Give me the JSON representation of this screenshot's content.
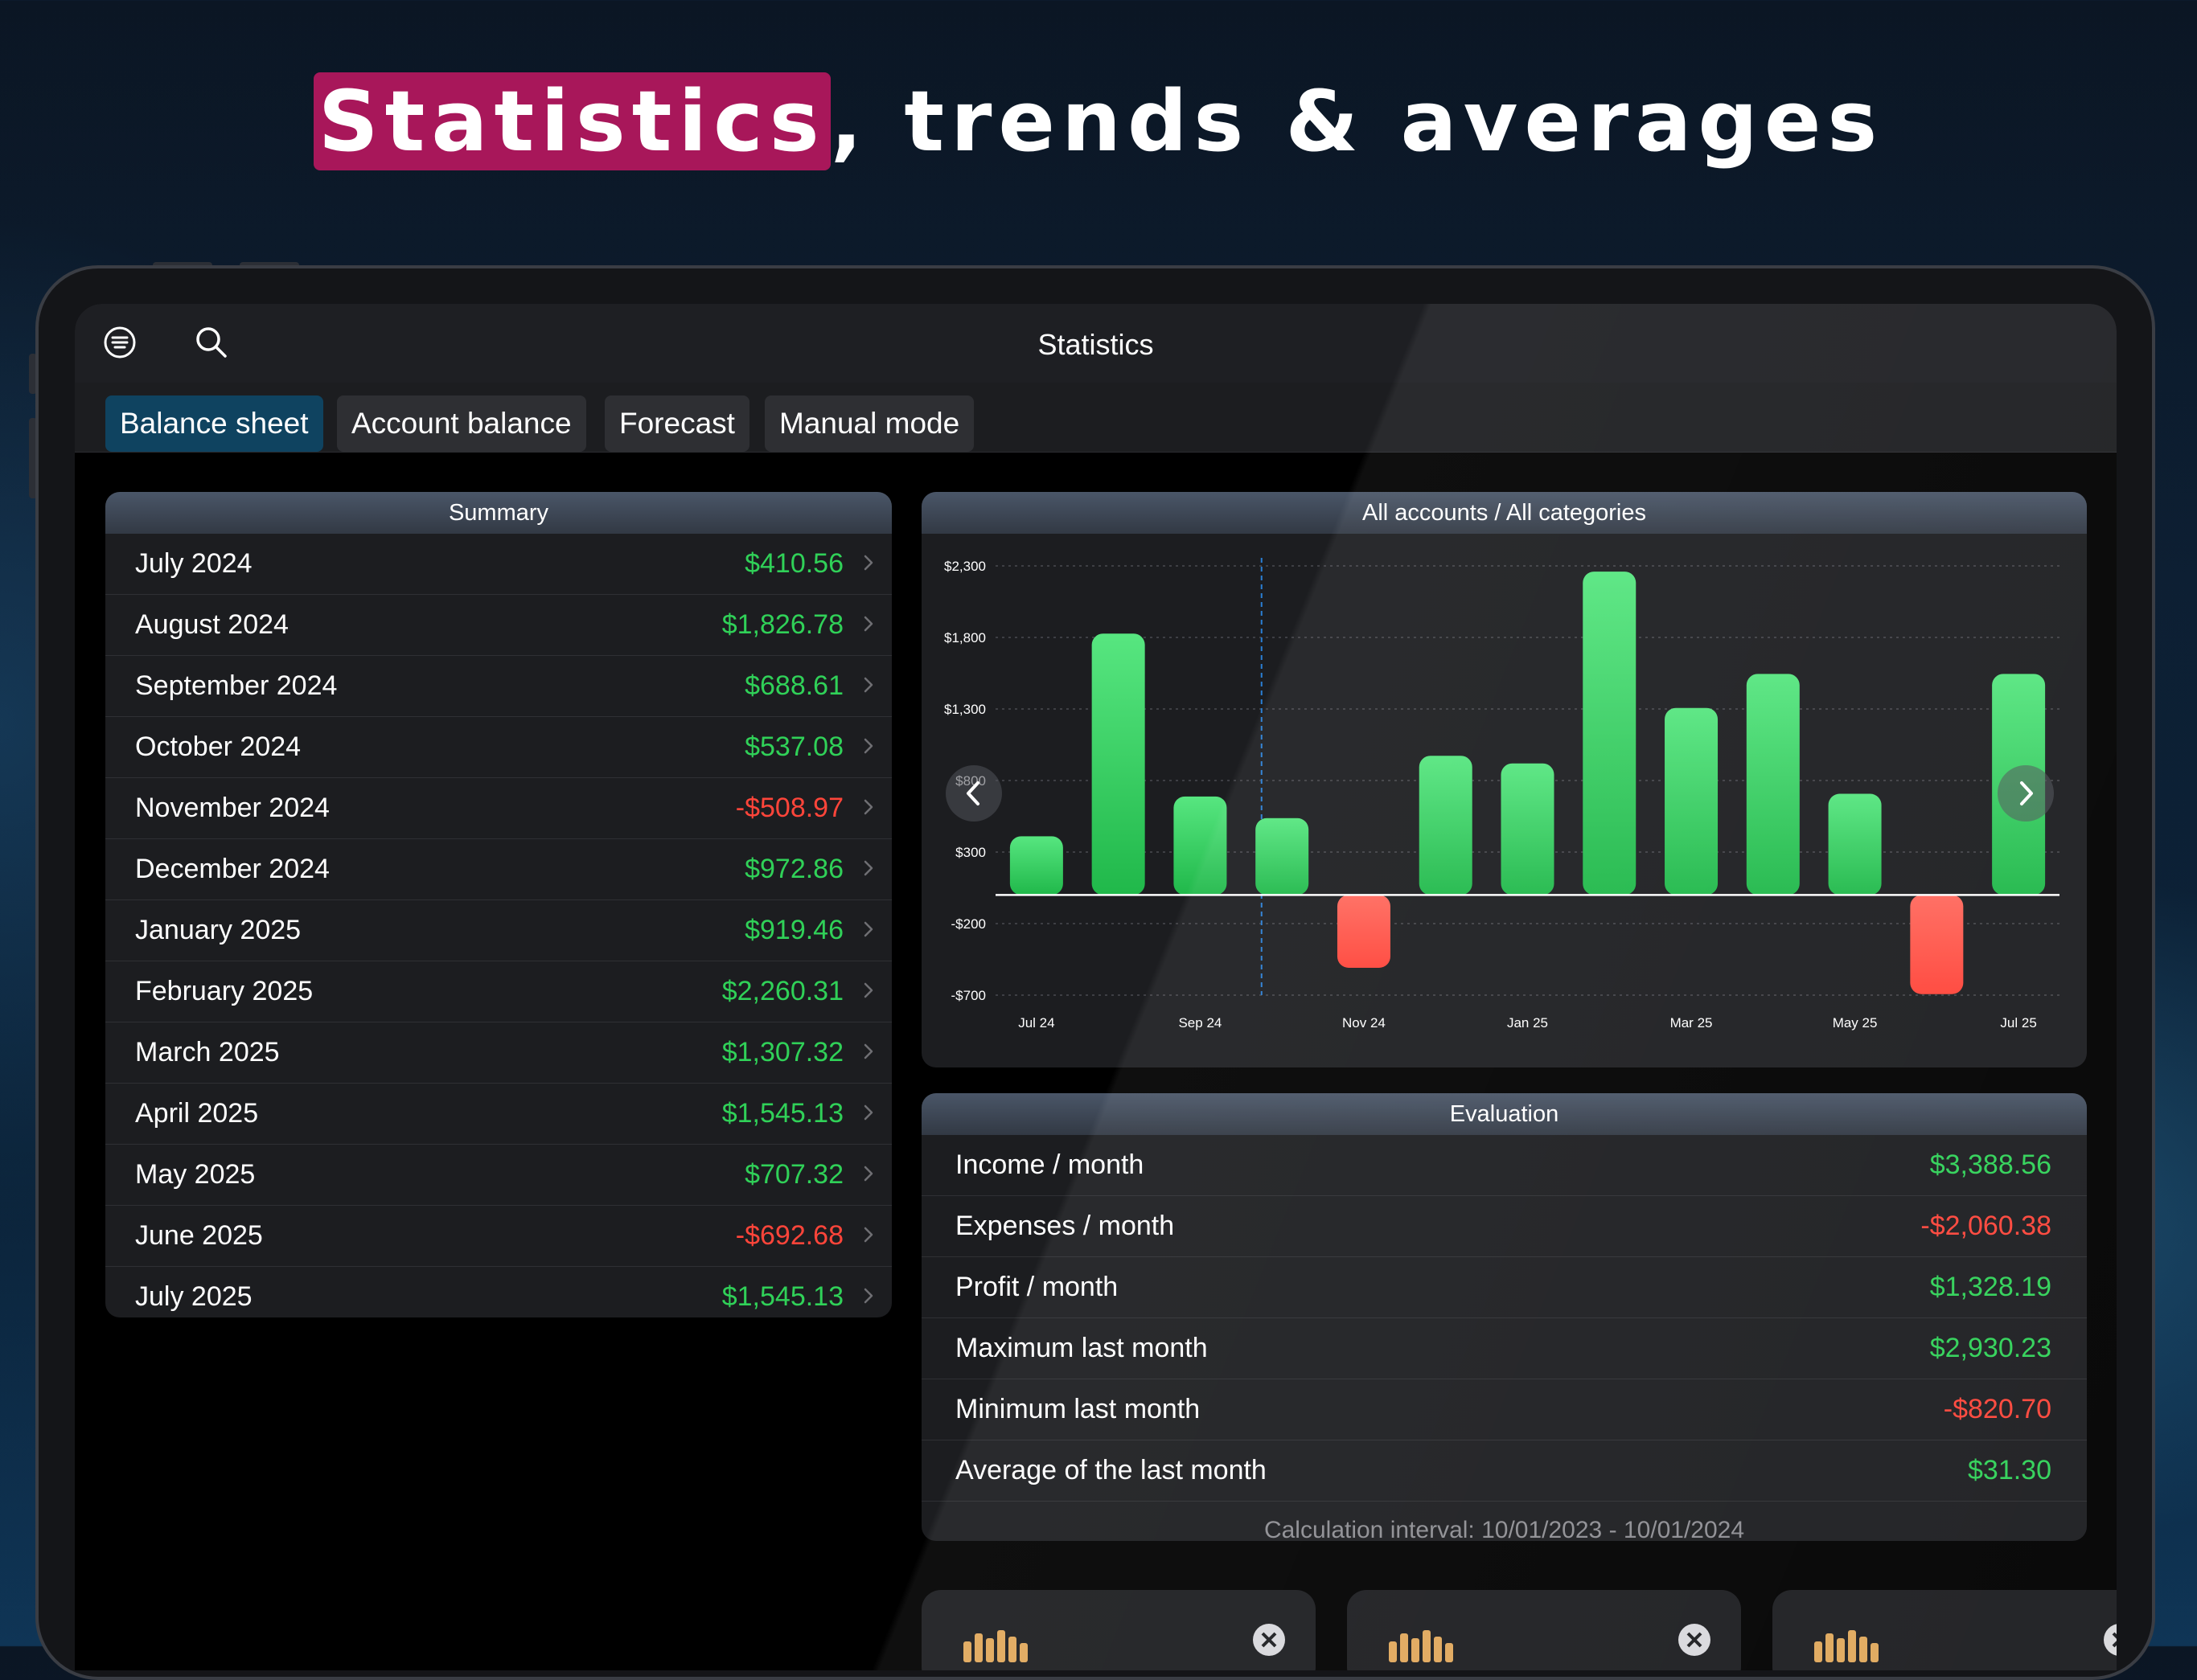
{
  "headline": {
    "highlight": "Statistics",
    "rest": ", trends & averages"
  },
  "colors": {
    "accent_highlight": "#a8175a",
    "positive": "#30d158",
    "negative": "#ff453a",
    "active_tab": "#0f4360"
  },
  "navbar": {
    "title": "Statistics",
    "icons": [
      "menu-icon",
      "search-icon"
    ]
  },
  "tabs": [
    {
      "label": "Balance sheet",
      "active": true
    },
    {
      "label": "Account balance",
      "active": false
    },
    {
      "label": "Forecast",
      "active": false
    },
    {
      "label": "Manual mode",
      "active": false
    }
  ],
  "summary": {
    "title": "Summary",
    "rows": [
      {
        "month": "July 2024",
        "value": "$410.56",
        "sign": "pos"
      },
      {
        "month": "August 2024",
        "value": "$1,826.78",
        "sign": "pos"
      },
      {
        "month": "September 2024",
        "value": "$688.61",
        "sign": "pos"
      },
      {
        "month": "October 2024",
        "value": "$537.08",
        "sign": "pos"
      },
      {
        "month": "November 2024",
        "value": "-$508.97",
        "sign": "neg"
      },
      {
        "month": "December 2024",
        "value": "$972.86",
        "sign": "pos"
      },
      {
        "month": "January 2025",
        "value": "$919.46",
        "sign": "pos"
      },
      {
        "month": "February 2025",
        "value": "$2,260.31",
        "sign": "pos"
      },
      {
        "month": "March 2025",
        "value": "$1,307.32",
        "sign": "pos"
      },
      {
        "month": "April 2025",
        "value": "$1,545.13",
        "sign": "pos"
      },
      {
        "month": "May 2025",
        "value": "$707.32",
        "sign": "pos"
      },
      {
        "month": "June 2025",
        "value": "-$692.68",
        "sign": "neg"
      },
      {
        "month": "July 2025",
        "value": "$1,545.13",
        "sign": "pos"
      }
    ]
  },
  "chart_panel": {
    "title": "All accounts / All categories"
  },
  "chart_data": {
    "type": "bar",
    "title": "All accounts / All categories",
    "categories": [
      "Jul 24",
      "Aug 24",
      "Sep 24",
      "Oct 24",
      "Nov 24",
      "Dec 24",
      "Jan 25",
      "Feb 25",
      "Mar 25",
      "Apr 25",
      "May 25",
      "Jun 25",
      "Jul 25"
    ],
    "values": [
      410.56,
      1826.78,
      688.61,
      537.08,
      -508.97,
      972.86,
      919.46,
      2260.31,
      1307.32,
      1545.13,
      707.32,
      -692.68,
      1545.13
    ],
    "x_tick_labels": [
      "Jul 24",
      "Sep 24",
      "Nov 24",
      "Jan 25",
      "Mar 25",
      "May 25",
      "Jul 25"
    ],
    "y_ticks": [
      2300,
      1800,
      1300,
      800,
      300,
      -200,
      -700
    ],
    "y_tick_labels": [
      "$2,300",
      "$1,800",
      "$1,300",
      "$800",
      "$300",
      "-$200",
      "-$700"
    ],
    "ylim": [
      -700,
      2300
    ],
    "grid": true,
    "positive_color": "#30d158",
    "negative_color": "#ff453a"
  },
  "evaluation": {
    "title": "Evaluation",
    "rows": [
      {
        "label": "Income / month",
        "value": "$3,388.56",
        "sign": "pos"
      },
      {
        "label": "Expenses / month",
        "value": "-$2,060.38",
        "sign": "neg"
      },
      {
        "label": "Profit / month",
        "value": "$1,328.19",
        "sign": "pos"
      },
      {
        "label": "Maximum last month",
        "value": "$2,930.23",
        "sign": "pos"
      },
      {
        "label": "Minimum last month",
        "value": "-$820.70",
        "sign": "neg"
      },
      {
        "label": "Average of the last month",
        "value": "$31.30",
        "sign": "pos"
      }
    ],
    "calculation_interval": "Calculation interval: 10/01/2023 - 10/01/2024"
  }
}
